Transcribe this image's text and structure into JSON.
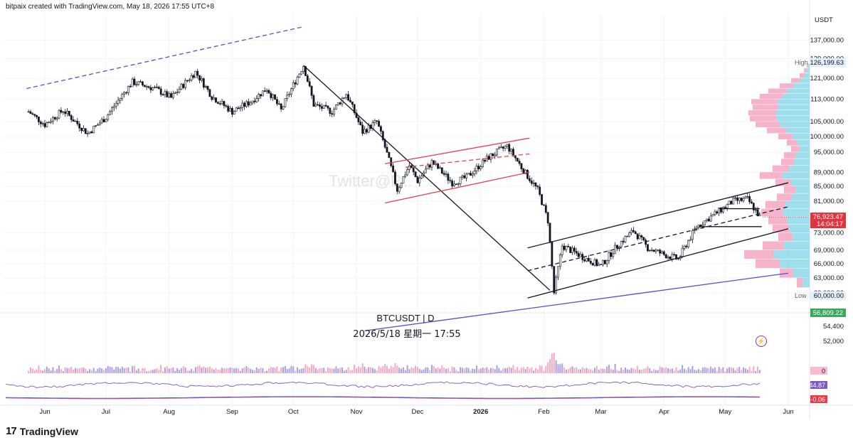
{
  "header": {
    "credit": "bitpaix created with TradingView.com, May 18, 2026 17:55 UTC+8"
  },
  "watermark": "Twitter@P...",
  "branding": {
    "logo_text": "TradingView",
    "logo_mark": "17"
  },
  "chart_data": {
    "type": "candlestick",
    "symbol_label": "BTCUSDT | D",
    "datetime_label": "2026/5/18 星期一 17:55",
    "currency": "USDT",
    "price_axis": {
      "scale": "log",
      "range": [
        50000,
        145000
      ],
      "ticks": [
        137000,
        129000,
        121000,
        113000,
        105000,
        100000,
        95000,
        89000,
        85000,
        81000,
        73000,
        69000,
        66000,
        63000,
        60000,
        54400,
        52000
      ],
      "tick_labels": [
        "137,000.00",
        "129,000.00",
        "121,000.00",
        "113,000.00",
        "105,000.00",
        "100,000.00",
        "95,000.00",
        "89,000.00",
        "85,000.00",
        "81,000.00",
        "73,000.00",
        "69,000.00",
        "66,000.00",
        "63,000.00",
        "60,000.00",
        "54,400",
        "52,000"
      ]
    },
    "time_axis": {
      "labels": [
        "Jun",
        "Jul",
        "Aug",
        "Sep",
        "Oct",
        "Nov",
        "Dec",
        "2026",
        "Feb",
        "Mar",
        "Apr",
        "May",
        "Jun"
      ],
      "months": [
        "2025-06-01",
        "2025-07-01",
        "2025-08-01",
        "2025-09-01",
        "2025-10-01",
        "2025-11-01",
        "2025-12-01",
        "2026-01-01",
        "2026-02-01",
        "2026-03-01",
        "2026-04-01",
        "2026-05-01",
        "2026-06-01"
      ],
      "bold_label": "2026"
    },
    "high": {
      "label": "High",
      "value": "126,199.63"
    },
    "low": {
      "label": "Low",
      "value": "60,000.00"
    },
    "last_price": {
      "value": "76,923.47",
      "countdown": "14:04:17"
    },
    "level_tag": "56,809.22",
    "path_points": [
      [
        "2025-05-24",
        108500
      ],
      [
        "2025-06-01",
        104000
      ],
      [
        "2025-06-10",
        109000
      ],
      [
        "2025-06-22",
        101000
      ],
      [
        "2025-07-01",
        106500
      ],
      [
        "2025-07-14",
        119500
      ],
      [
        "2025-07-25",
        117000
      ],
      [
        "2025-08-02",
        113500
      ],
      [
        "2025-08-14",
        123500
      ],
      [
        "2025-08-22",
        114000
      ],
      [
        "2025-09-01",
        108500
      ],
      [
        "2025-09-10",
        112000
      ],
      [
        "2025-09-18",
        117000
      ],
      [
        "2025-09-25",
        109000
      ],
      [
        "2025-10-06",
        126199
      ],
      [
        "2025-10-11",
        111000
      ],
      [
        "2025-10-20",
        108500
      ],
      [
        "2025-10-27",
        115000
      ],
      [
        "2025-11-04",
        101500
      ],
      [
        "2025-11-11",
        105000
      ],
      [
        "2025-11-21",
        84000
      ],
      [
        "2025-11-27",
        91000
      ],
      [
        "2025-12-01",
        86500
      ],
      [
        "2025-12-08",
        92000
      ],
      [
        "2025-12-18",
        86000
      ],
      [
        "2025-12-25",
        87500
      ],
      [
        "2026-01-05",
        93500
      ],
      [
        "2026-01-14",
        97000
      ],
      [
        "2026-01-22",
        89500
      ],
      [
        "2026-01-29",
        84000
      ],
      [
        "2026-02-03",
        76000
      ],
      [
        "2026-02-06",
        60000
      ],
      [
        "2026-02-10",
        70000
      ],
      [
        "2026-02-20",
        67500
      ],
      [
        "2026-03-01",
        65500
      ],
      [
        "2026-03-10",
        70500
      ],
      [
        "2026-03-17",
        73500
      ],
      [
        "2026-03-24",
        69500
      ],
      [
        "2026-04-01",
        68000
      ],
      [
        "2026-04-08",
        67000
      ],
      [
        "2026-04-17",
        74500
      ],
      [
        "2026-04-27",
        78000
      ],
      [
        "2026-05-05",
        81000
      ],
      [
        "2026-05-12",
        81500
      ],
      [
        "2026-05-18",
        76923
      ]
    ],
    "trendlines": [
      {
        "name": "",
        "color": "#5c4cc8",
        "dash": true,
        "p1": [
          "2025-05-23",
          117000
        ],
        "p2": [
          "2025-10-05",
          143000
        ]
      },
      {
        "name": "",
        "color": "#131722",
        "dash": false,
        "p1": [
          "2025-10-06",
          126199
        ],
        "p2": [
          "2026-02-04",
          60500
        ]
      },
      {
        "name": "",
        "color": "#e04455",
        "dash": false,
        "p1": [
          "2025-11-15",
          91500
        ],
        "p2": [
          "2026-01-25",
          99500
        ]
      },
      {
        "name": "",
        "color": "#e04455",
        "dash": true,
        "p1": [
          "2025-11-25",
          90500
        ],
        "p2": [
          "2026-01-25",
          94500
        ]
      },
      {
        "name": "",
        "color": "#e04455",
        "dash": false,
        "p1": [
          "2025-11-15",
          80500
        ],
        "p2": [
          "2026-01-25",
          89000
        ]
      },
      {
        "name": "",
        "color": "#131722",
        "dash": false,
        "p1": [
          "2026-01-24",
          69500
        ],
        "p2": [
          "2026-06-01",
          86000
        ]
      },
      {
        "name": "",
        "color": "#131722",
        "dash": true,
        "p1": [
          "2026-01-24",
          64500
        ],
        "p2": [
          "2026-06-01",
          79500
        ]
      },
      {
        "name": "",
        "color": "#131722",
        "dash": false,
        "p1": [
          "2026-01-24",
          59000
        ],
        "p2": [
          "2026-06-01",
          74000
        ]
      },
      {
        "name": "",
        "color": "#5c4cc8",
        "dash": false,
        "p1": [
          "2025-11-05",
          53000
        ],
        "p2": [
          "2026-06-01",
          64000
        ]
      }
    ],
    "horizontal_levels": [
      {
        "value": 74500,
        "from": "2026-04-18",
        "to": "2026-05-19"
      },
      {
        "value": 79000,
        "from": "2026-04-28",
        "to": "2026-05-18"
      }
    ],
    "volume_profile": [
      [
        126000,
        4
      ],
      [
        124000,
        8
      ],
      [
        122000,
        14
      ],
      [
        120000,
        26
      ],
      [
        118000,
        42
      ],
      [
        116000,
        58
      ],
      [
        114000,
        70
      ],
      [
        112000,
        82
      ],
      [
        110000,
        80
      ],
      [
        108000,
        86
      ],
      [
        106000,
        84
      ],
      [
        104000,
        76
      ],
      [
        102000,
        60
      ],
      [
        100000,
        44
      ],
      [
        98000,
        32
      ],
      [
        96000,
        26
      ],
      [
        94000,
        36
      ],
      [
        92000,
        40
      ],
      [
        90000,
        52
      ],
      [
        88000,
        70
      ],
      [
        86000,
        48
      ],
      [
        84000,
        36
      ],
      [
        82000,
        46
      ],
      [
        80000,
        62
      ],
      [
        78000,
        68
      ],
      [
        76000,
        58
      ],
      [
        74000,
        52
      ],
      [
        72000,
        44
      ],
      [
        70000,
        66
      ],
      [
        68000,
        92
      ],
      [
        66000,
        76
      ],
      [
        64000,
        42
      ],
      [
        62000,
        18
      ]
    ],
    "indicators": {
      "volume_tag": "0",
      "rsi_tag": "44.87",
      "macd_tag": "-0.06"
    }
  }
}
